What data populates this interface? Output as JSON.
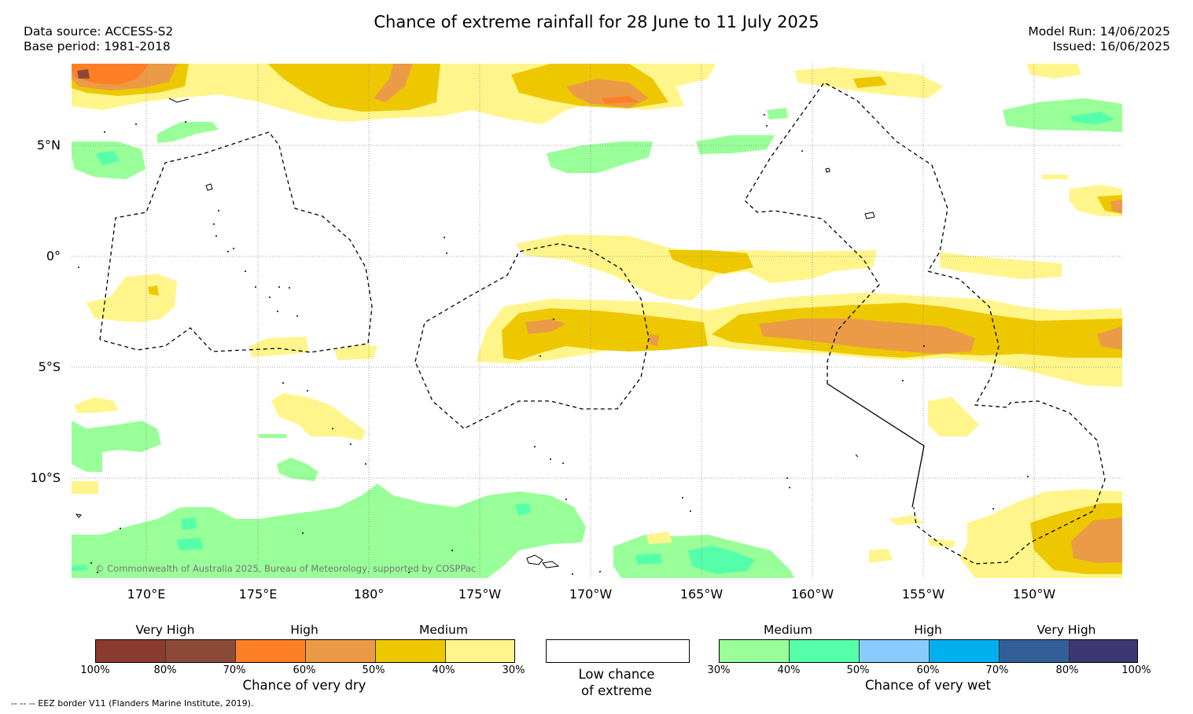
{
  "header": {
    "title": "Chance of extreme rainfall for 28 June to 11 July 2025",
    "data_source": "Data source: ACCESS-S2",
    "base_period": "Base period: 1981-2018",
    "model_run": "Model Run: 14/06/2025",
    "issued": "Issued: 16/06/2025"
  },
  "map": {
    "lat_labels": [
      "5°N",
      "0°",
      "5°S",
      "10°S"
    ],
    "lon_labels": [
      "170°E",
      "175°E",
      "180°",
      "175°W",
      "170°W",
      "165°W",
      "160°W",
      "155°W",
      "150°W"
    ],
    "copyright": "© Commonwealth of Australia 2025, Bureau of Meteorology, supported by COSPPac"
  },
  "legend_dry": {
    "categories": [
      "Very High",
      "High",
      "Medium"
    ],
    "ticks": [
      "100%",
      "80%",
      "70%",
      "60%",
      "50%",
      "40%",
      "30%"
    ],
    "colors": [
      "#8b3a30",
      "#8b4a38",
      "#ff7f27",
      "#eb9b46",
      "#edc800",
      "#fff58a"
    ],
    "title": "Chance of very dry"
  },
  "legend_low": {
    "line1": "Low chance",
    "line2": "of extreme",
    "color": "#ffffff"
  },
  "legend_wet": {
    "categories": [
      "Medium",
      "High",
      "Very High"
    ],
    "ticks": [
      "30%",
      "40%",
      "50%",
      "60%",
      "70%",
      "80%",
      "100%"
    ],
    "colors": [
      "#99ff99",
      "#55ffaa",
      "#88ccff",
      "#00b0ee",
      "#335f99",
      "#3d3873"
    ],
    "title": "Chance of very wet"
  },
  "footer": {
    "eez_note": "--  --  -- EEZ border V11 (Flanders Marine Institute, 2019)."
  }
}
